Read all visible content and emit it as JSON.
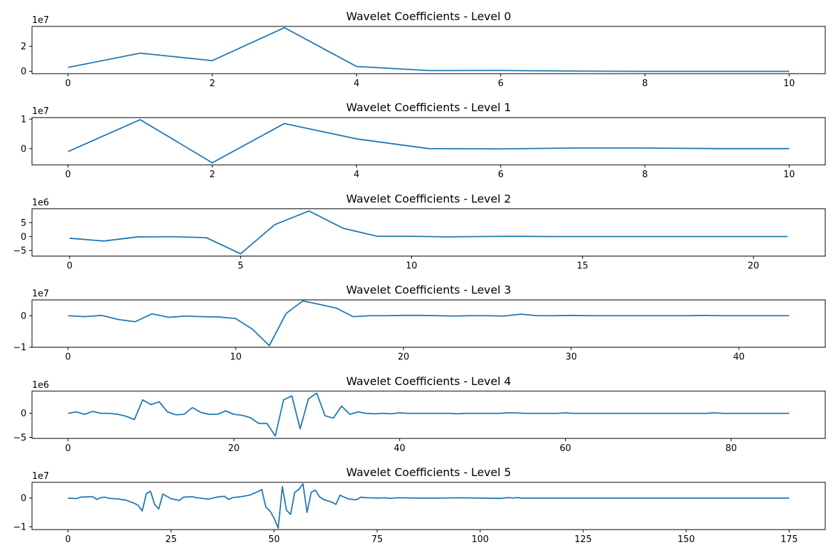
{
  "chart_data": [
    {
      "type": "line",
      "title": "Wavelet Coefficients - Level 0",
      "y_offset_label": "1e7",
      "y_scale": 10000000,
      "xlim": [
        -0.5,
        10.5
      ],
      "ylim": [
        -0.2,
        3.6
      ],
      "xticks": [
        0,
        2,
        4,
        6,
        8,
        10
      ],
      "xtick_labels": [
        "0",
        "2",
        "4",
        "6",
        "8",
        "10"
      ],
      "yticks": [
        0,
        2
      ],
      "ytick_labels": [
        "0",
        "2"
      ],
      "x": [
        0,
        1,
        2,
        3,
        4,
        5,
        6,
        7,
        8,
        9,
        10
      ],
      "values": [
        0.3,
        1.45,
        0.85,
        3.5,
        0.38,
        0.05,
        0.06,
        0.01,
        -0.01,
        -0.01,
        -0.01
      ]
    },
    {
      "type": "line",
      "title": "Wavelet Coefficients - Level 1",
      "y_offset_label": "1e7",
      "y_scale": 10000000,
      "xlim": [
        -0.5,
        10.5
      ],
      "ylim": [
        -0.55,
        1.05
      ],
      "xticks": [
        0,
        2,
        4,
        6,
        8,
        10
      ],
      "xtick_labels": [
        "0",
        "2",
        "4",
        "6",
        "8",
        "10"
      ],
      "yticks": [
        0,
        1
      ],
      "ytick_labels": [
        "0",
        "1"
      ],
      "x": [
        0,
        1,
        2,
        3,
        4,
        5,
        6,
        7,
        8,
        9,
        10
      ],
      "values": [
        -0.1,
        0.98,
        -0.48,
        0.85,
        0.33,
        0.0,
        -0.01,
        0.02,
        0.02,
        0.0,
        0.0
      ]
    },
    {
      "type": "line",
      "title": "Wavelet Coefficients - Level 2",
      "y_offset_label": "1e6",
      "y_scale": 1000000,
      "xlim": [
        -1.1,
        22.1
      ],
      "ylim": [
        -7,
        10
      ],
      "xticks": [
        0,
        5,
        10,
        15,
        20
      ],
      "xtick_labels": [
        "0",
        "5",
        "10",
        "15",
        "20"
      ],
      "yticks": [
        -5,
        0,
        5
      ],
      "ytick_labels": [
        "−5",
        "0",
        "5"
      ],
      "x": [
        0,
        1,
        2,
        3,
        4,
        5,
        6,
        7,
        8,
        9,
        10,
        11,
        12,
        13,
        14,
        15,
        16,
        17,
        18,
        19,
        20,
        21
      ],
      "values": [
        -0.6,
        -1.6,
        -0.1,
        -0.05,
        -0.4,
        -6.2,
        4.3,
        9.2,
        3.0,
        0.1,
        0.1,
        -0.1,
        0.0,
        0.1,
        0.0,
        0.0,
        0.0,
        0.0,
        0.0,
        0.0,
        0.0,
        0.0
      ]
    },
    {
      "type": "line",
      "title": "Wavelet Coefficients - Level 3",
      "y_offset_label": "1e7",
      "y_scale": 10000000,
      "xlim": [
        -2.15,
        45.15
      ],
      "ylim": [
        -1.0,
        0.5
      ],
      "xticks": [
        0,
        10,
        20,
        30,
        40
      ],
      "xtick_labels": [
        "0",
        "10",
        "20",
        "30",
        "40"
      ],
      "yticks": [
        -1,
        0
      ],
      "ytick_labels": [
        "−1",
        "0"
      ],
      "x": [
        0,
        1,
        2,
        3,
        4,
        5,
        6,
        7,
        8,
        9,
        10,
        11,
        12,
        13,
        14,
        15,
        16,
        17,
        18,
        19,
        20,
        21,
        22,
        23,
        24,
        25,
        26,
        27,
        28,
        29,
        30,
        31,
        32,
        33,
        34,
        35,
        36,
        37,
        38,
        39,
        40,
        41,
        42,
        43
      ],
      "values": [
        0.0,
        -0.03,
        0.01,
        -0.12,
        -0.19,
        0.06,
        -0.05,
        -0.01,
        -0.03,
        -0.04,
        -0.09,
        -0.43,
        -0.95,
        0.07,
        0.47,
        0.36,
        0.24,
        -0.03,
        0.0,
        0.0,
        0.01,
        0.01,
        0.0,
        -0.01,
        0.0,
        0.0,
        -0.01,
        0.05,
        0.0,
        0.0,
        0.01,
        0.0,
        0.0,
        0.0,
        0.0,
        0.0,
        0.0,
        0.0,
        0.01,
        0.0,
        0.0,
        0.0,
        0.0,
        0.0
      ]
    },
    {
      "type": "line",
      "title": "Wavelet Coefficients - Level 4",
      "y_offset_label": "1e6",
      "y_scale": 1000000,
      "xlim": [
        -4.35,
        91.35
      ],
      "ylim": [
        -5.2,
        4.6
      ],
      "xticks": [
        0,
        20,
        40,
        60,
        80
      ],
      "xtick_labels": [
        "0",
        "20",
        "40",
        "60",
        "80"
      ],
      "yticks": [
        -5,
        0
      ],
      "ytick_labels": [
        "−5",
        "0"
      ],
      "x": [
        0,
        1,
        2,
        3,
        4,
        5,
        6,
        7,
        8,
        9,
        10,
        11,
        12,
        13,
        14,
        15,
        16,
        17,
        18,
        19,
        20,
        21,
        22,
        23,
        24,
        25,
        26,
        27,
        28,
        29,
        30,
        31,
        32,
        33,
        34,
        35,
        36,
        37,
        38,
        39,
        40,
        41,
        42,
        43,
        44,
        45,
        46,
        47,
        48,
        49,
        50,
        51,
        52,
        53,
        54,
        55,
        56,
        57,
        58,
        59,
        60,
        61,
        62,
        63,
        64,
        65,
        66,
        67,
        68,
        69,
        70,
        71,
        72,
        73,
        74,
        75,
        76,
        77,
        78,
        79,
        80,
        81,
        82,
        83,
        84,
        85,
        86,
        87
      ],
      "values": [
        0.0,
        0.3,
        -0.2,
        0.4,
        0.0,
        0.0,
        -0.2,
        -0.6,
        -1.3,
        2.8,
        1.8,
        2.4,
        0.3,
        -0.3,
        -0.2,
        1.2,
        0.2,
        -0.2,
        -0.2,
        0.5,
        -0.2,
        -0.4,
        -0.9,
        -2.1,
        -2.1,
        -4.7,
        2.8,
        3.6,
        -3.2,
        3.0,
        4.2,
        -0.5,
        -1.0,
        1.5,
        -0.2,
        0.3,
        0.0,
        -0.1,
        0.0,
        -0.1,
        0.1,
        0.0,
        0.0,
        0.0,
        0.0,
        0.0,
        0.0,
        -0.1,
        0.0,
        0.0,
        0.0,
        0.0,
        0.0,
        0.1,
        0.1,
        0.0,
        0.0,
        0.0,
        0.0,
        0.0,
        0.1,
        0.0,
        0.0,
        0.0,
        0.0,
        0.0,
        0.0,
        0.0,
        0.0,
        0.0,
        0.0,
        0.0,
        0.0,
        0.0,
        0.0,
        0.0,
        0.0,
        0.0,
        0.1,
        0.0,
        0.0,
        0.0,
        0.0,
        0.0,
        0.0,
        0.0,
        0.0,
        0.0
      ]
    },
    {
      "type": "line",
      "title": "Wavelet Coefficients - Level 5",
      "y_offset_label": "1e7",
      "y_scale": 10000000,
      "xlim": [
        -8.75,
        183.75
      ],
      "ylim": [
        -1.1,
        0.55
      ],
      "xticks": [
        0,
        25,
        50,
        75,
        100,
        125,
        150,
        175
      ],
      "xtick_labels": [
        "0",
        "25",
        "50",
        "75",
        "100",
        "125",
        "150",
        "175"
      ],
      "yticks": [
        -1,
        0
      ],
      "ytick_labels": [
        "−1",
        "0"
      ],
      "x": [
        0,
        2,
        3,
        4,
        6,
        7,
        8,
        9,
        10,
        12,
        14,
        16,
        17,
        18,
        19,
        20,
        21,
        22,
        23,
        25,
        27,
        28,
        30,
        31,
        32,
        34,
        36,
        37,
        38,
        39,
        40,
        42,
        44,
        46,
        47,
        48,
        49,
        50,
        51,
        52,
        53,
        54,
        55,
        56,
        57,
        58,
        59,
        60,
        61,
        62,
        64,
        65,
        66,
        68,
        70,
        71,
        73,
        75,
        77,
        78,
        80,
        85,
        90,
        95,
        100,
        105,
        107,
        108,
        109,
        110,
        115,
        120,
        125,
        130,
        135,
        140,
        145,
        150,
        155,
        160,
        165,
        170,
        175
      ],
      "values": [
        0.0,
        -0.02,
        0.03,
        0.04,
        0.05,
        -0.05,
        0.02,
        0.03,
        -0.01,
        -0.03,
        -0.07,
        -0.18,
        -0.25,
        -0.45,
        0.16,
        0.24,
        -0.22,
        -0.38,
        0.14,
        -0.02,
        -0.08,
        0.03,
        0.05,
        0.02,
        0.0,
        -0.04,
        0.03,
        0.05,
        0.06,
        -0.05,
        0.02,
        0.05,
        0.1,
        0.22,
        0.3,
        -0.32,
        -0.45,
        -0.7,
        -1.05,
        0.4,
        -0.42,
        -0.57,
        0.2,
        0.3,
        0.5,
        -0.5,
        0.2,
        0.28,
        0.05,
        -0.05,
        -0.14,
        -0.22,
        0.1,
        -0.03,
        -0.06,
        0.03,
        0.01,
        0.0,
        0.01,
        -0.01,
        0.01,
        0.0,
        0.0,
        0.01,
        0.0,
        -0.01,
        0.02,
        0.0,
        0.02,
        0.0,
        0.0,
        0.0,
        0.0,
        0.0,
        0.0,
        0.0,
        0.0,
        0.0,
        0.0,
        0.0,
        0.0,
        0.0,
        0.0
      ]
    }
  ],
  "colors": {
    "line": "#1f77b4"
  }
}
